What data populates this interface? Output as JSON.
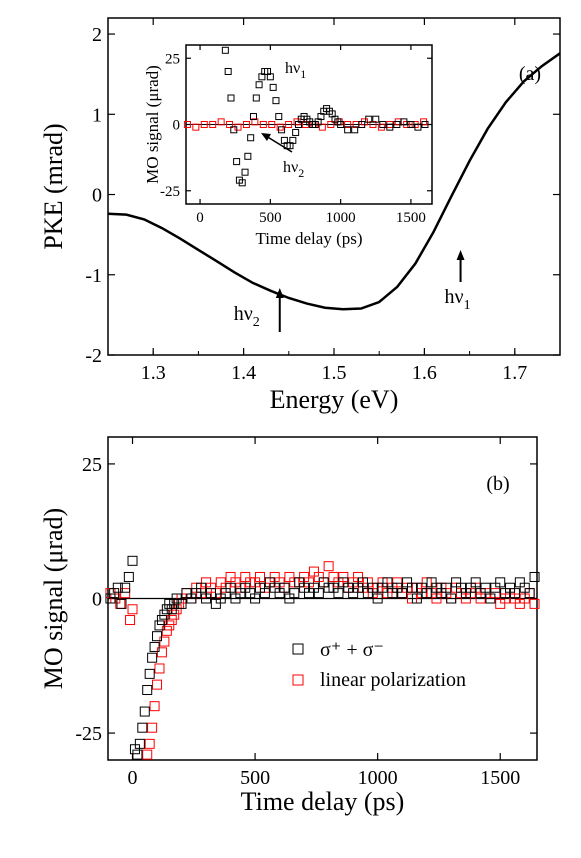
{
  "chart_data": [
    {
      "id": "a",
      "type": "line",
      "panel_label": "(a)",
      "xlabel": "Energy (eV)",
      "ylabel": "PKE (mrad)",
      "xlim": [
        1.25,
        1.75
      ],
      "ylim": [
        -2,
        2.2
      ],
      "xticks": [
        "1.3",
        "1.4",
        "1.5",
        "1.6",
        "1.7"
      ],
      "yticks": [
        "-2",
        "-1",
        "0",
        "1",
        "2"
      ],
      "series": [
        {
          "x": [
            1.25,
            1.27,
            1.29,
            1.31,
            1.33,
            1.35,
            1.37,
            1.39,
            1.41,
            1.43,
            1.45,
            1.47,
            1.49,
            1.51,
            1.53,
            1.55,
            1.57,
            1.59,
            1.61,
            1.63,
            1.65,
            1.67,
            1.69,
            1.71,
            1.73,
            1.75
          ],
          "y": [
            -0.24,
            -0.25,
            -0.31,
            -0.42,
            -0.55,
            -0.69,
            -0.83,
            -0.97,
            -1.1,
            -1.2,
            -1.29,
            -1.36,
            -1.41,
            -1.43,
            -1.42,
            -1.34,
            -1.15,
            -0.86,
            -0.47,
            -0.02,
            0.42,
            0.82,
            1.15,
            1.41,
            1.6,
            1.76
          ]
        }
      ],
      "annotations": [
        {
          "label": "hν",
          "sub": "2",
          "x": 1.44
        },
        {
          "label": "hν",
          "sub": "1",
          "x": 1.64
        }
      ]
    },
    {
      "id": "a-inset",
      "type": "scatter",
      "xlabel": "Time delay (ps)",
      "ylabel": "MO signal (μrad)",
      "xlim": [
        -100,
        1650
      ],
      "ylim": [
        -30,
        30
      ],
      "xticks": [
        "0",
        "500",
        "1000",
        "1500"
      ],
      "yticks": [
        "-25",
        "0",
        "25"
      ],
      "annotations": [
        {
          "label": "hν",
          "sub": "1"
        },
        {
          "label": "hν",
          "sub": "2"
        }
      ],
      "series": [
        {
          "color": "#000000",
          "marker": "open-square",
          "x": [
            180,
            200,
            220,
            240,
            260,
            280,
            300,
            320,
            340,
            360,
            380,
            400,
            420,
            440,
            460,
            480,
            500,
            520,
            540,
            560,
            580,
            600,
            620,
            640,
            660,
            680,
            700,
            720,
            740,
            760,
            780,
            800,
            820,
            840,
            860,
            880,
            900,
            920,
            940,
            960,
            980,
            1000,
            1050,
            1100,
            1150,
            1200,
            1250,
            1300,
            1350,
            1400,
            1450,
            1500,
            1550,
            1600
          ],
          "y": [
            28,
            20,
            10,
            -2,
            -14,
            -21,
            -22,
            -18,
            -12,
            -5,
            3,
            10,
            15,
            18,
            20,
            20,
            18,
            14,
            9,
            3,
            -2,
            -6,
            -8,
            -8,
            -6,
            -3,
            0,
            2,
            3,
            2,
            1,
            0,
            0,
            1,
            3,
            5,
            6,
            5,
            4,
            2,
            1,
            0,
            -2,
            -2,
            0,
            2,
            2,
            0,
            -1,
            0,
            1,
            0,
            -1,
            0
          ]
        },
        {
          "color": "#ff0000",
          "marker": "open-square",
          "x": [
            -90,
            -30,
            30,
            90,
            150,
            210,
            270,
            330,
            390,
            450,
            510,
            570,
            630,
            690,
            750,
            810,
            870,
            930,
            990,
            1050,
            1110,
            1170,
            1230,
            1290,
            1350,
            1410,
            1470,
            1530,
            1590
          ],
          "y": [
            0,
            -1,
            0,
            0,
            1,
            0,
            -1,
            0,
            1,
            0,
            0,
            -1,
            0,
            1,
            0,
            0,
            -1,
            0,
            1,
            0,
            0,
            1,
            0,
            -1,
            0,
            1,
            0,
            0,
            1
          ]
        }
      ]
    },
    {
      "id": "b",
      "type": "scatter",
      "panel_label": "(b)",
      "xlabel": "Time delay (ps)",
      "ylabel": "MO signal (μrad)",
      "xlim": [
        -100,
        1650
      ],
      "ylim": [
        -30,
        30
      ],
      "xticks": [
        "0",
        "500",
        "1000",
        "1500"
      ],
      "yticks": [
        "-25",
        "0",
        "25"
      ],
      "legend_position": "lower-right",
      "series": [
        {
          "name": "σ⁺ + σ⁻",
          "color": "#000000",
          "marker": "open-square",
          "x": [
            -90,
            -75,
            -60,
            -45,
            -30,
            -15,
            0,
            10,
            20,
            30,
            40,
            50,
            60,
            70,
            80,
            90,
            100,
            110,
            120,
            130,
            140,
            150,
            160,
            170,
            180,
            200,
            220,
            240,
            260,
            280,
            300,
            320,
            340,
            360,
            380,
            400,
            420,
            440,
            460,
            480,
            500,
            520,
            540,
            560,
            580,
            600,
            620,
            640,
            660,
            680,
            700,
            720,
            740,
            760,
            780,
            800,
            820,
            840,
            860,
            880,
            900,
            920,
            940,
            960,
            980,
            1000,
            1020,
            1040,
            1060,
            1080,
            1100,
            1120,
            1140,
            1160,
            1180,
            1200,
            1220,
            1240,
            1260,
            1280,
            1300,
            1320,
            1340,
            1360,
            1380,
            1400,
            1420,
            1440,
            1460,
            1480,
            1500,
            1520,
            1540,
            1560,
            1580,
            1600,
            1620,
            1640
          ],
          "y": [
            0,
            1,
            2,
            -1,
            2,
            4,
            7,
            -28,
            -29,
            -27,
            -24,
            -21,
            -17,
            -14,
            -11,
            -9,
            -7,
            -5,
            -4,
            -3,
            -2,
            -1,
            -2,
            -1,
            0,
            -1,
            1,
            0,
            1,
            2,
            0,
            1,
            -1,
            0,
            1,
            2,
            0,
            1,
            2,
            1,
            0,
            2,
            1,
            3,
            2,
            1,
            2,
            0,
            1,
            3,
            2,
            1,
            2,
            1,
            3,
            2,
            2,
            1,
            3,
            2,
            1,
            2,
            3,
            1,
            2,
            0,
            2,
            3,
            1,
            2,
            1,
            3,
            2,
            0,
            2,
            1,
            3,
            2,
            1,
            2,
            0,
            3,
            2,
            1,
            2,
            3,
            1,
            2,
            0,
            2,
            3,
            1,
            2,
            1,
            3,
            2,
            1,
            4
          ]
        },
        {
          "name": "linear polarization",
          "color": "#ff0000",
          "marker": "open-square",
          "x": [
            -90,
            -70,
            -50,
            -30,
            -10,
            0,
            60,
            70,
            80,
            90,
            100,
            110,
            120,
            130,
            140,
            150,
            160,
            170,
            180,
            190,
            200,
            220,
            240,
            260,
            280,
            300,
            320,
            340,
            360,
            380,
            400,
            420,
            440,
            460,
            480,
            500,
            520,
            540,
            560,
            580,
            600,
            620,
            640,
            660,
            680,
            700,
            720,
            740,
            760,
            780,
            800,
            820,
            840,
            860,
            880,
            900,
            920,
            940,
            960,
            980,
            1000,
            1020,
            1040,
            1060,
            1080,
            1100,
            1120,
            1140,
            1160,
            1180,
            1200,
            1220,
            1240,
            1260,
            1280,
            1300,
            1320,
            1340,
            1360,
            1380,
            1400,
            1420,
            1440,
            1460,
            1480,
            1500,
            1520,
            1540,
            1560,
            1580,
            1600,
            1620,
            1640
          ],
          "y": [
            1,
            0,
            -1,
            1,
            -4,
            -2,
            -29,
            -27,
            -24,
            -20,
            -16,
            -13,
            -10,
            -8,
            -6,
            -5,
            -4,
            -3,
            -2,
            -1,
            0,
            1,
            0,
            2,
            1,
            3,
            2,
            1,
            3,
            2,
            4,
            3,
            2,
            4,
            3,
            3,
            4,
            2,
            3,
            4,
            3,
            2,
            4,
            3,
            3,
            4,
            3,
            5,
            4,
            3,
            6,
            4,
            3,
            4,
            2,
            3,
            4,
            2,
            3,
            1,
            2,
            3,
            1,
            2,
            3,
            1,
            2,
            0,
            2,
            1,
            3,
            1,
            0,
            2,
            1,
            0,
            2,
            1,
            0,
            1,
            2,
            0,
            1,
            0,
            1,
            -1,
            0,
            1,
            0,
            -1,
            0,
            1,
            -1
          ]
        }
      ]
    }
  ]
}
